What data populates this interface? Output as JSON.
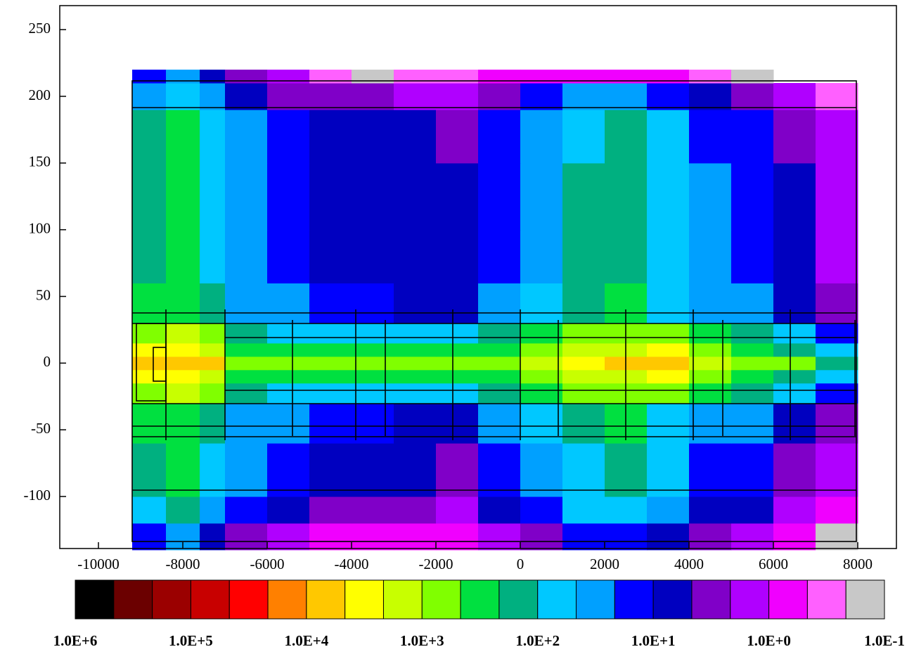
{
  "chart_data": {
    "type": "heatmap",
    "xlim": [
      -10917,
      8917
    ],
    "ylim": [
      -139,
      268
    ],
    "xticks": [
      -10000,
      -8000,
      -6000,
      -4000,
      -2000,
      0,
      2000,
      4000,
      6000,
      8000
    ],
    "yticks": [
      250,
      200,
      150,
      100,
      50,
      0,
      -50,
      -100
    ],
    "xbins": [
      -9200,
      -8400,
      -7600,
      -7000,
      -6000,
      -5000,
      -4000,
      -3000,
      -2000,
      -1000,
      0,
      1000,
      2000,
      3000,
      4000,
      5000,
      6000,
      7000,
      8000
    ],
    "ybins": [
      -140,
      -120,
      -100,
      -60,
      -30,
      -15,
      -5,
      5,
      15,
      30,
      60,
      100,
      150,
      190,
      210,
      220
    ],
    "z": [
      [
        15,
        30,
        8,
        3,
        1.5,
        1,
        1,
        0.6,
        0.5,
        1.5,
        4,
        12,
        15,
        7,
        2.5,
        1.5,
        0.5,
        0.2
      ],
      [
        60,
        120,
        30,
        12,
        6,
        4,
        4,
        2.4,
        2,
        6,
        16,
        50,
        60,
        28,
        10,
        6,
        2,
        0.6
      ],
      [
        120,
        240,
        64,
        24,
        12,
        8,
        8,
        5,
        4,
        12,
        32,
        100,
        120,
        56,
        20,
        12,
        4,
        1.2
      ],
      [
        220,
        450,
        120,
        45,
        22,
        15,
        15,
        9,
        8,
        22,
        60,
        180,
        220,
        100,
        38,
        22,
        8,
        2.2
      ],
      [
        1000,
        1400,
        600,
        150,
        100,
        80,
        100,
        60,
        55,
        110,
        250,
        600,
        900,
        750,
        220,
        120,
        50,
        15
      ],
      [
        2400,
        2400,
        2000,
        280,
        320,
        280,
        400,
        240,
        240,
        320,
        600,
        1200,
        2000,
        3200,
        800,
        400,
        200,
        60
      ],
      [
        6000,
        6000,
        5000,
        700,
        800,
        700,
        1000,
        600,
        600,
        800,
        1500,
        3000,
        5000,
        8000,
        2000,
        1000,
        500,
        150
      ],
      [
        2400,
        2400,
        2000,
        280,
        320,
        280,
        400,
        240,
        240,
        320,
        600,
        1200,
        2000,
        3200,
        800,
        400,
        200,
        60
      ],
      [
        1000,
        1400,
        600,
        150,
        100,
        80,
        100,
        60,
        55,
        110,
        250,
        600,
        900,
        750,
        220,
        120,
        50,
        15
      ],
      [
        220,
        450,
        120,
        45,
        22,
        15,
        15,
        9,
        8,
        22,
        60,
        180,
        220,
        100,
        38,
        22,
        8,
        2.2
      ],
      [
        150,
        300,
        80,
        30,
        15,
        10,
        10,
        6,
        5,
        15,
        40,
        120,
        150,
        70,
        25,
        15,
        5,
        1.5
      ],
      [
        150,
        300,
        80,
        30,
        15,
        10,
        10,
        6,
        5,
        15,
        40,
        120,
        150,
        70,
        25,
        15,
        5,
        1.5
      ],
      [
        130,
        250,
        70,
        25,
        12,
        8,
        8,
        5,
        4,
        12,
        35,
        100,
        130,
        60,
        20,
        12,
        4,
        1.2
      ],
      [
        45,
        90,
        24,
        9,
        4.5,
        3,
        3,
        1.8,
        1.5,
        4.5,
        12,
        36,
        45,
        21,
        7.5,
        4.5,
        1.5,
        0.45
      ],
      [
        15,
        30,
        8,
        3,
        1.5,
        0.3,
        0.2,
        0.3,
        0.3,
        1,
        0.5,
        0.8,
        1,
        0.6,
        0.3,
        0.2,
        null,
        null
      ]
    ],
    "colorbar": {
      "colors": [
        "#000000",
        "#6b0000",
        "#9b0000",
        "#c80000",
        "#ff0000",
        "#ff8000",
        "#ffc800",
        "#ffff00",
        "#c8ff00",
        "#80ff00",
        "#00e040",
        "#00b080",
        "#00c8ff",
        "#00a0ff",
        "#0000ff",
        "#0000c0",
        "#8000c8",
        "#b000ff",
        "#f000ff",
        "#ff60ff",
        "#c8c8c8"
      ],
      "ticks": [
        {
          "value": 1000000,
          "label": "1.0E+6"
        },
        {
          "value": 100000,
          "label": "1.0E+5"
        },
        {
          "value": 10000,
          "label": "1.0E+4"
        },
        {
          "value": 1000,
          "label": "1.0E+3"
        },
        {
          "value": 100,
          "label": "1.0E+2"
        },
        {
          "value": 10,
          "label": "1.0E+1"
        },
        {
          "value": 1,
          "label": "1.0E+0"
        },
        {
          "value": 0.1,
          "label": "1.0E-1"
        }
      ]
    }
  }
}
